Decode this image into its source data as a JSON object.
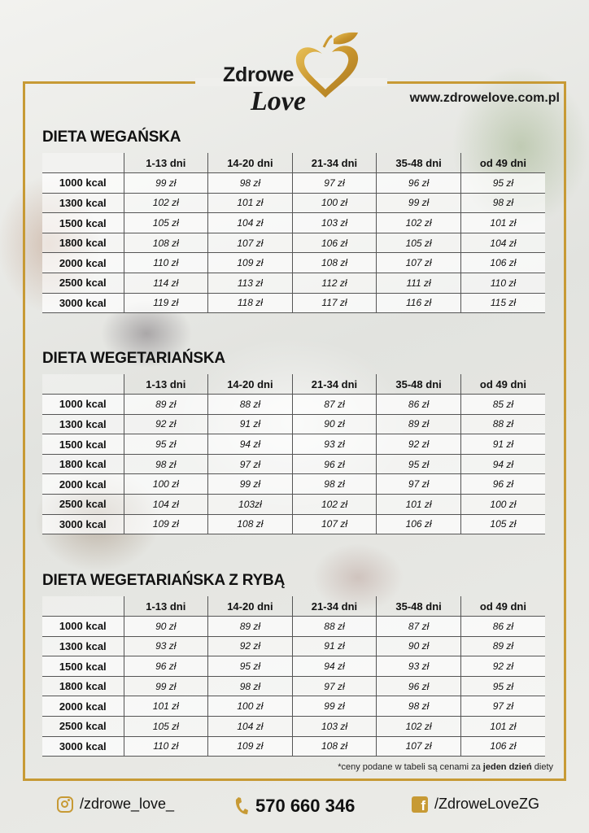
{
  "brand": {
    "word1": "Zdrowe",
    "word2": "Love",
    "website": "www.zdrowelove.com.pl",
    "gold": "#c79a35"
  },
  "columns": [
    "1-13 dni",
    "14-20 dni",
    "21-34 dni",
    "35-48 dni",
    "od 49 dni"
  ],
  "diets": [
    {
      "title": "DIETA WEGAŃSKA",
      "rows": [
        {
          "kcal": "1000 kcal",
          "prices": [
            "99 zł",
            "98 zł",
            "97 zł",
            "96 zł",
            "95 zł"
          ]
        },
        {
          "kcal": "1300 kcal",
          "prices": [
            "102 zł",
            "101 zł",
            "100 zł",
            "99 zł",
            "98 zł"
          ]
        },
        {
          "kcal": "1500 kcal",
          "prices": [
            "105 zł",
            "104 zł",
            "103 zł",
            "102 zł",
            "101 zł"
          ]
        },
        {
          "kcal": "1800 kcal",
          "prices": [
            "108 zł",
            "107 zł",
            "106 zł",
            "105 zł",
            "104 zł"
          ]
        },
        {
          "kcal": "2000 kcal",
          "prices": [
            "110 zł",
            "109 zł",
            "108 zł",
            "107 zł",
            "106 zł"
          ]
        },
        {
          "kcal": "2500 kcal",
          "prices": [
            "114 zł",
            "113 zł",
            "112 zł",
            "111 zł",
            "110 zł"
          ]
        },
        {
          "kcal": "3000 kcal",
          "prices": [
            "119 zł",
            "118 zł",
            "117 zł",
            "116 zł",
            "115 zł"
          ]
        }
      ]
    },
    {
      "title": "DIETA WEGETARIAŃSKA",
      "rows": [
        {
          "kcal": "1000 kcal",
          "prices": [
            "89 zł",
            "88 zł",
            "87 zł",
            "86 zł",
            "85 zł"
          ]
        },
        {
          "kcal": "1300 kcal",
          "prices": [
            "92 zł",
            "91 zł",
            "90 zł",
            "89 zł",
            "88 zł"
          ]
        },
        {
          "kcal": "1500 kcal",
          "prices": [
            "95 zł",
            "94 zł",
            "93 zł",
            "92 zł",
            "91 zł"
          ]
        },
        {
          "kcal": "1800 kcal",
          "prices": [
            "98 zł",
            "97 zł",
            "96 zł",
            "95 zł",
            "94 zł"
          ]
        },
        {
          "kcal": "2000 kcal",
          "prices": [
            "100 zł",
            "99 zł",
            "98 zł",
            "97 zł",
            "96 zł"
          ]
        },
        {
          "kcal": "2500 kcal",
          "prices": [
            "104 zł",
            "103zł",
            "102 zł",
            "101 zł",
            "100 zł"
          ]
        },
        {
          "kcal": "3000 kcal",
          "prices": [
            "109 zł",
            "108 zł",
            "107 zł",
            "106 zł",
            "105 zł"
          ]
        }
      ]
    },
    {
      "title": "DIETA WEGETARIAŃSKA Z RYBĄ",
      "rows": [
        {
          "kcal": "1000 kcal",
          "prices": [
            "90 zł",
            "89 zł",
            "88 zł",
            "87 zł",
            "86 zł"
          ]
        },
        {
          "kcal": "1300 kcal",
          "prices": [
            "93 zł",
            "92 zł",
            "91 zł",
            "90 zł",
            "89 zł"
          ]
        },
        {
          "kcal": "1500 kcal",
          "prices": [
            "96 zł",
            "95 zł",
            "94 zł",
            "93 zł",
            "92 zł"
          ]
        },
        {
          "kcal": "1800 kcal",
          "prices": [
            "99 zł",
            "98 zł",
            "97 zł",
            "96 zł",
            "95 zł"
          ]
        },
        {
          "kcal": "2000 kcal",
          "prices": [
            "101 zł",
            "100 zł",
            "99 zł",
            "98 zł",
            "97 zł"
          ]
        },
        {
          "kcal": "2500 kcal",
          "prices": [
            "105 zł",
            "104 zł",
            "103 zł",
            "102 zł",
            "101 zł"
          ]
        },
        {
          "kcal": "3000 kcal",
          "prices": [
            "110 zł",
            "109 zł",
            "108 zł",
            "107 zł",
            "106 zł"
          ]
        }
      ]
    }
  ],
  "footnote": {
    "before": "*ceny podane w tabeli są cenami za ",
    "bold": "jeden dzień",
    "after": " diety"
  },
  "footer": {
    "instagram": "/zdrowe_love_",
    "phone": "570 660 346",
    "facebook": "/ZdroweLoveZG",
    "icons": [
      "instagram-icon",
      "phone-icon",
      "facebook-icon"
    ]
  }
}
